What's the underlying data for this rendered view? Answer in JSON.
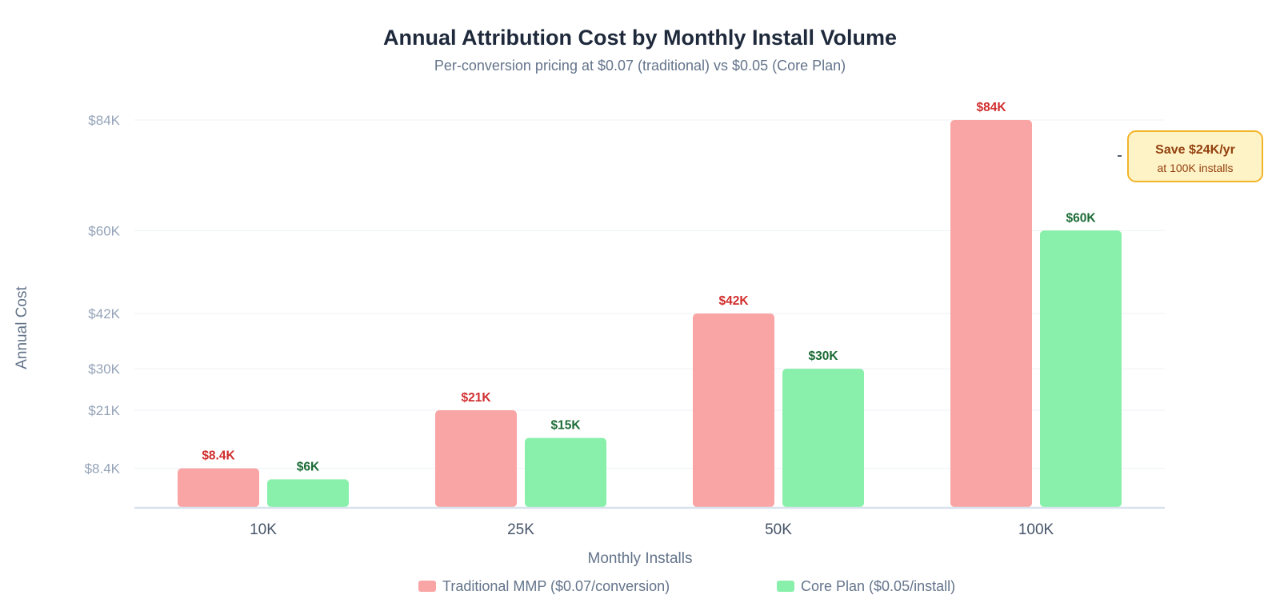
{
  "chart_data": {
    "type": "bar",
    "title": "Annual Attribution Cost by Monthly Install Volume",
    "subtitle": "Per-conversion pricing at $0.07 (traditional) vs $0.05 (Core Plan)",
    "xlabel": "Monthly Installs",
    "ylabel": "Annual Cost",
    "categories": [
      "10K",
      "25K",
      "50K",
      "100K"
    ],
    "ylim": [
      0,
      84000
    ],
    "yticks": [
      8400,
      21000,
      30000,
      42000,
      60000,
      84000
    ],
    "ytick_labels": [
      "$8.4K",
      "$21K",
      "$30K",
      "$42K",
      "$60K",
      "$84K"
    ],
    "grid": true,
    "legend_position": "bottom-center",
    "series": [
      {
        "name": "Traditional MMP ($0.07/conversion)",
        "values": [
          8400,
          21000,
          42000,
          84000
        ],
        "labels": [
          "$8.4K",
          "$21K",
          "$42K",
          "$84K"
        ],
        "color": "#FAA5A5",
        "label_color": "#D12E2E"
      },
      {
        "name": "Core Plan ($0.05/install)",
        "values": [
          6000,
          15000,
          30000,
          60000
        ],
        "labels": [
          "$6K",
          "$15K",
          "$30K",
          "$60K"
        ],
        "color": "#88F0AA",
        "label_color": "#1B6B35"
      }
    ],
    "annotation": {
      "title": "Save $24K/yr",
      "subtitle": "at 100K installs",
      "category": "100K"
    }
  },
  "colors": {
    "title": "#1E293B",
    "subtitle": "#64748B",
    "tick": "#94A3B8",
    "x_tick": "#475569",
    "axis_label": "#64748B",
    "grid": "#EDF2F7",
    "baseline": "#D8E2EC",
    "callout_fill": "#FEF3C7",
    "callout_border": "#F0B429",
    "callout_title": "#92400E",
    "callout_sub": "#92400E"
  }
}
